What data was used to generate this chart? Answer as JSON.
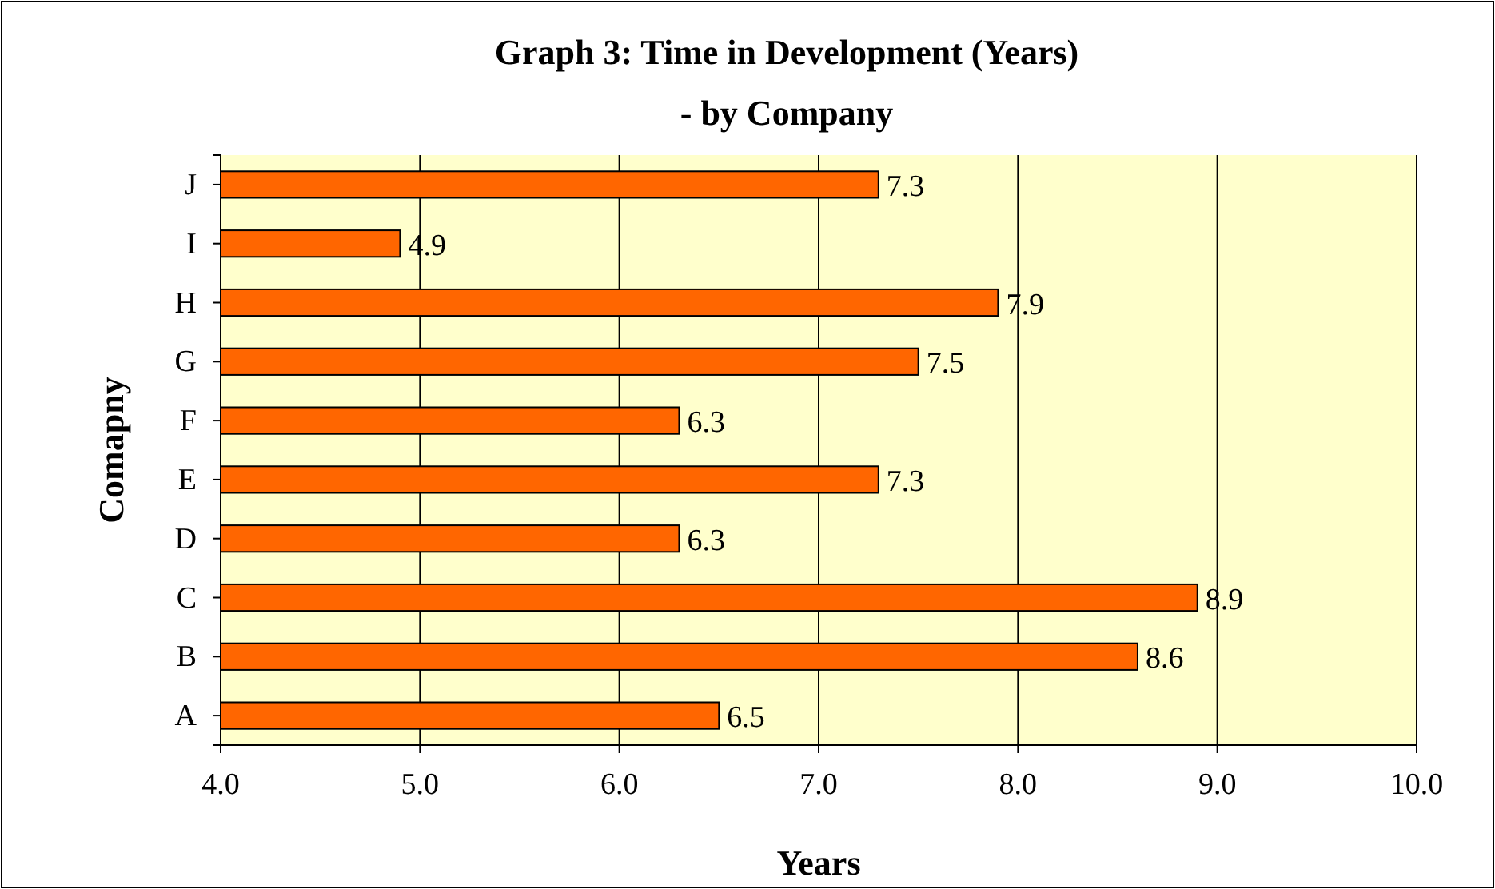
{
  "chart_data": {
    "type": "bar",
    "orientation": "horizontal",
    "title": "Graph 3: Time in Development (Years)",
    "subtitle": "- by Company",
    "xlabel": "Years",
    "ylabel": "Comapny",
    "categories": [
      "J",
      "I",
      "H",
      "G",
      "F",
      "E",
      "D",
      "C",
      "B",
      "A"
    ],
    "values": [
      7.3,
      4.9,
      7.9,
      7.5,
      6.3,
      7.3,
      6.3,
      8.9,
      8.6,
      6.5
    ],
    "color": "#ff6600",
    "data_labels": true,
    "grid": "x",
    "xlim": [
      4,
      10
    ],
    "xticks": [
      {
        "value": 4,
        "label": "4.0"
      },
      {
        "value": 5,
        "label": "5.0"
      },
      {
        "value": 6,
        "label": "6.0"
      },
      {
        "value": 7,
        "label": "7.0"
      },
      {
        "value": 8,
        "label": "8.0"
      },
      {
        "value": 9,
        "label": "9.0"
      },
      {
        "value": 10,
        "label": "10.0"
      }
    ]
  }
}
